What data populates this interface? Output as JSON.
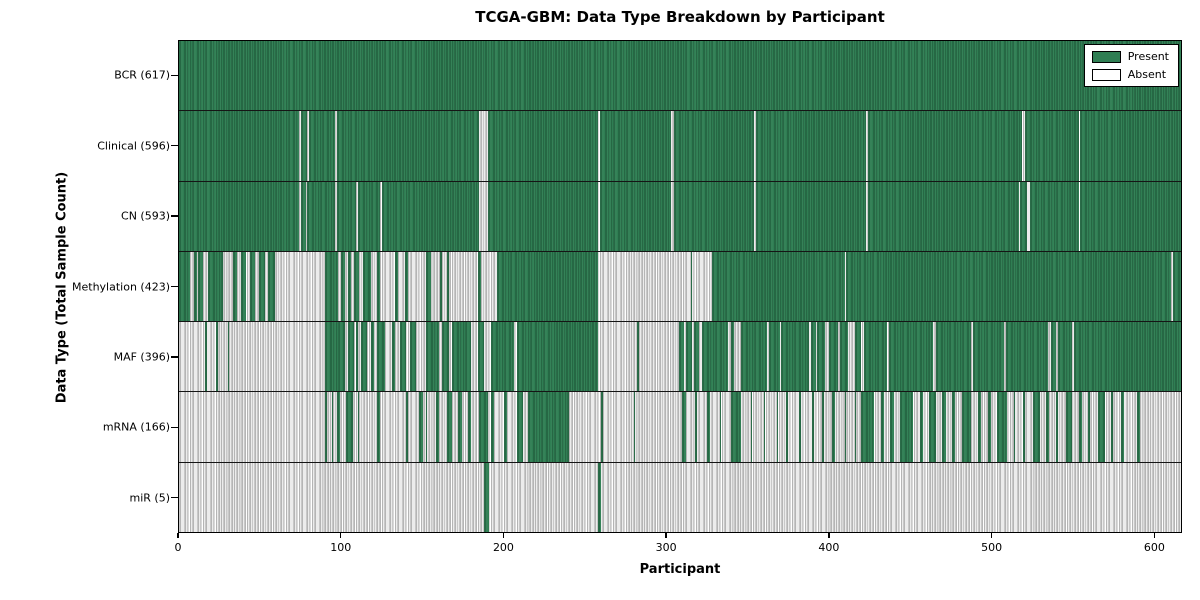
{
  "title": "TCGA-GBM: Data Type Breakdown by Participant",
  "xlabel": "Participant",
  "ylabel": "Data Type (Total Sample Count)",
  "legend": {
    "present_label": "Present",
    "absent_label": "Absent"
  },
  "colors": {
    "present": "#2f7e53",
    "present_edge": "#1e5537",
    "absent": "#ffffff",
    "absent_edge": "#919191",
    "frame": "#000000"
  },
  "chart_data": {
    "type": "heatmap",
    "title": "TCGA-GBM: Data Type Breakdown by Participant",
    "xlabel": "Participant",
    "ylabel": "Data Type (Total Sample Count)",
    "legend_entries": [
      "Present",
      "Absent"
    ],
    "legend_position": "upper right",
    "x_range": [
      0,
      617
    ],
    "x_ticks": [
      0,
      100,
      200,
      300,
      400,
      500,
      600
    ],
    "rows": [
      {
        "label": "BCR (617)",
        "name": "BCR",
        "total": 617,
        "present_ranges": [
          [
            0,
            617
          ]
        ]
      },
      {
        "label": "Clinical (596)",
        "name": "Clinical",
        "total": 596,
        "present_ranges": [
          [
            0,
            74
          ],
          [
            75,
            79
          ],
          [
            80,
            96
          ],
          [
            97,
            185
          ],
          [
            190,
            258
          ],
          [
            259,
            303
          ],
          [
            305,
            354
          ],
          [
            355,
            423
          ],
          [
            424,
            519
          ],
          [
            521,
            554
          ],
          [
            555,
            617
          ]
        ]
      },
      {
        "label": "CN (593)",
        "name": "CN",
        "total": 593,
        "present_ranges": [
          [
            0,
            74
          ],
          [
            75,
            78
          ],
          [
            79,
            96
          ],
          [
            97,
            109
          ],
          [
            110,
            124
          ],
          [
            125,
            185
          ],
          [
            190,
            258
          ],
          [
            259,
            303
          ],
          [
            305,
            354
          ],
          [
            355,
            423
          ],
          [
            424,
            517
          ],
          [
            518,
            522
          ],
          [
            524,
            554
          ],
          [
            555,
            617
          ]
        ]
      },
      {
        "label": "Methylation (423)",
        "name": "Methylation",
        "total": 423,
        "present_ranges": [
          [
            0,
            7
          ],
          [
            9,
            11
          ],
          [
            12,
            15
          ],
          [
            18,
            27
          ],
          [
            33,
            36
          ],
          [
            38,
            41
          ],
          [
            44,
            47
          ],
          [
            49,
            53
          ],
          [
            55,
            59
          ],
          [
            90,
            98
          ],
          [
            100,
            102
          ],
          [
            104,
            106
          ],
          [
            108,
            111
          ],
          [
            113,
            118
          ],
          [
            122,
            124
          ],
          [
            133,
            135
          ],
          [
            139,
            141
          ],
          [
            152,
            155
          ],
          [
            161,
            162
          ],
          [
            165,
            166
          ],
          [
            184,
            186
          ],
          [
            196,
            258
          ],
          [
            315,
            316
          ],
          [
            328,
            410
          ],
          [
            411,
            611
          ],
          [
            612,
            617
          ]
        ]
      },
      {
        "label": "MAF (396)",
        "name": "MAF",
        "total": 396,
        "present_ranges": [
          [
            16,
            17
          ],
          [
            23,
            24
          ],
          [
            30,
            31
          ],
          [
            90,
            102
          ],
          [
            104,
            108
          ],
          [
            109,
            110
          ],
          [
            112,
            116
          ],
          [
            118,
            120
          ],
          [
            122,
            127
          ],
          [
            131,
            133
          ],
          [
            136,
            140
          ],
          [
            142,
            146
          ],
          [
            152,
            160
          ],
          [
            162,
            166
          ],
          [
            168,
            180
          ],
          [
            184,
            188
          ],
          [
            192,
            206
          ],
          [
            208,
            258
          ],
          [
            282,
            283
          ],
          [
            308,
            311
          ],
          [
            312,
            316
          ],
          [
            317,
            320
          ],
          [
            322,
            338
          ],
          [
            340,
            342
          ],
          [
            346,
            362
          ],
          [
            363,
            370
          ],
          [
            371,
            388
          ],
          [
            389,
            392
          ],
          [
            393,
            398
          ],
          [
            400,
            406
          ],
          [
            407,
            412
          ],
          [
            416,
            420
          ],
          [
            422,
            436
          ],
          [
            437,
            464
          ],
          [
            466,
            488
          ],
          [
            489,
            508
          ],
          [
            509,
            535
          ],
          [
            537,
            540
          ],
          [
            541,
            550
          ],
          [
            551,
            617
          ]
        ]
      },
      {
        "label": "mRNA (166)",
        "name": "mRNA",
        "total": 166,
        "present_ranges": [
          [
            90,
            91
          ],
          [
            94,
            95
          ],
          [
            97,
            99
          ],
          [
            103,
            107
          ],
          [
            110,
            111
          ],
          [
            122,
            124
          ],
          [
            140,
            141
          ],
          [
            148,
            150
          ],
          [
            152,
            153
          ],
          [
            158,
            160
          ],
          [
            165,
            168
          ],
          [
            172,
            174
          ],
          [
            178,
            180
          ],
          [
            185,
            190
          ],
          [
            192,
            194
          ],
          [
            200,
            202
          ],
          [
            208,
            212
          ],
          [
            215,
            240
          ],
          [
            260,
            261
          ],
          [
            280,
            281
          ],
          [
            310,
            312
          ],
          [
            318,
            319
          ],
          [
            325,
            327
          ],
          [
            333,
            334
          ],
          [
            340,
            346
          ],
          [
            352,
            353
          ],
          [
            360,
            361
          ],
          [
            368,
            369
          ],
          [
            374,
            375
          ],
          [
            382,
            383
          ],
          [
            390,
            391
          ],
          [
            396,
            397
          ],
          [
            402,
            404
          ],
          [
            410,
            411
          ],
          [
            416,
            417
          ],
          [
            420,
            428
          ],
          [
            432,
            434
          ],
          [
            438,
            440
          ],
          [
            444,
            452
          ],
          [
            456,
            458
          ],
          [
            462,
            466
          ],
          [
            470,
            472
          ],
          [
            476,
            478
          ],
          [
            482,
            488
          ],
          [
            492,
            494
          ],
          [
            498,
            500
          ],
          [
            504,
            510
          ],
          [
            514,
            515
          ],
          [
            520,
            521
          ],
          [
            526,
            530
          ],
          [
            534,
            536
          ],
          [
            540,
            541
          ],
          [
            546,
            550
          ],
          [
            554,
            556
          ],
          [
            560,
            561
          ],
          [
            566,
            570
          ],
          [
            574,
            575
          ],
          [
            580,
            582
          ],
          [
            590,
            592
          ]
        ]
      },
      {
        "label": "miR (5)",
        "name": "miR",
        "total": 5,
        "present_ranges": [
          [
            188,
            191
          ],
          [
            258,
            260
          ]
        ]
      }
    ]
  }
}
